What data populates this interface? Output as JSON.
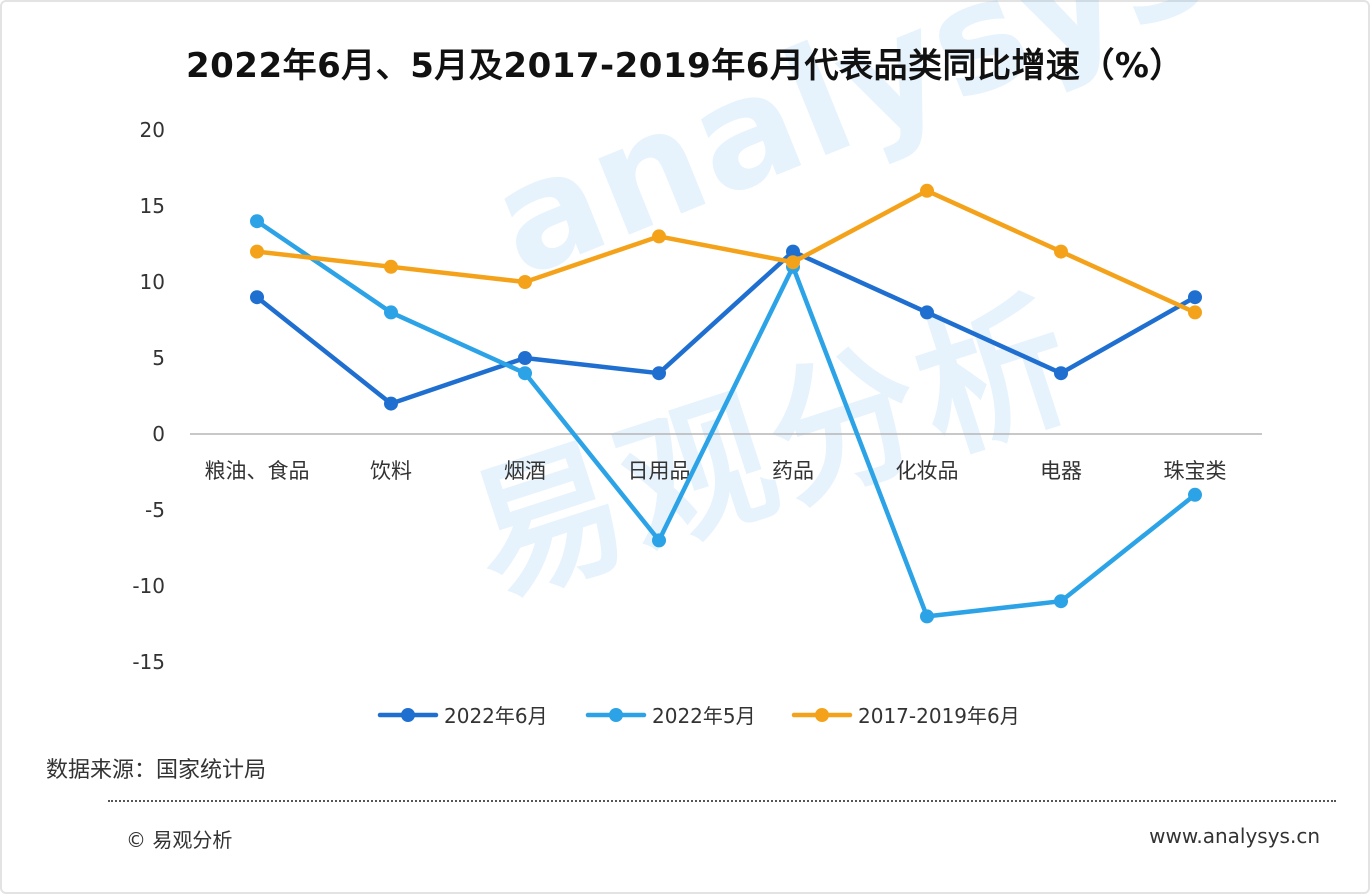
{
  "title": "2022年6月、5月及2017-2019年6月代表品类同比增速（%）",
  "source_text": "数据来源：国家统计局",
  "copyright_text": "© 易观分析",
  "site_text": "www.analysys.cn",
  "watermark": {
    "latin": "analysys",
    "cjk": "易观分析"
  },
  "colors": {
    "s2022_06": "#1f6fd0",
    "s2022_05": "#2ba3e6",
    "s2017_2019": "#f5a21b",
    "axis": "#b5b5b5"
  },
  "chart_data": {
    "type": "line",
    "title": "2022年6月、5月及2017-2019年6月代表品类同比增速（%）",
    "categories": [
      "粮油、食品",
      "饮料",
      "烟酒",
      "日用品",
      "药品",
      "化妆品",
      "电器",
      "珠宝类"
    ],
    "ylim": [
      -15,
      20
    ],
    "yticks": [
      "20",
      "15",
      "10",
      "5",
      "0",
      "-5",
      "-10",
      "-15"
    ],
    "grid": false,
    "legend_position": "bottom",
    "series": [
      {
        "name": "2022年6月",
        "color": "#1f6fd0",
        "values": [
          9,
          2,
          5,
          4,
          12,
          8,
          4,
          9
        ]
      },
      {
        "name": "2022年5月",
        "color": "#2ba3e6",
        "values": [
          14,
          8,
          4,
          -7,
          11,
          -12,
          -11,
          -4
        ]
      },
      {
        "name": "2017-2019年6月",
        "color": "#f5a21b",
        "values": [
          12,
          11,
          10,
          13,
          11.3,
          16,
          12,
          8
        ]
      }
    ]
  }
}
